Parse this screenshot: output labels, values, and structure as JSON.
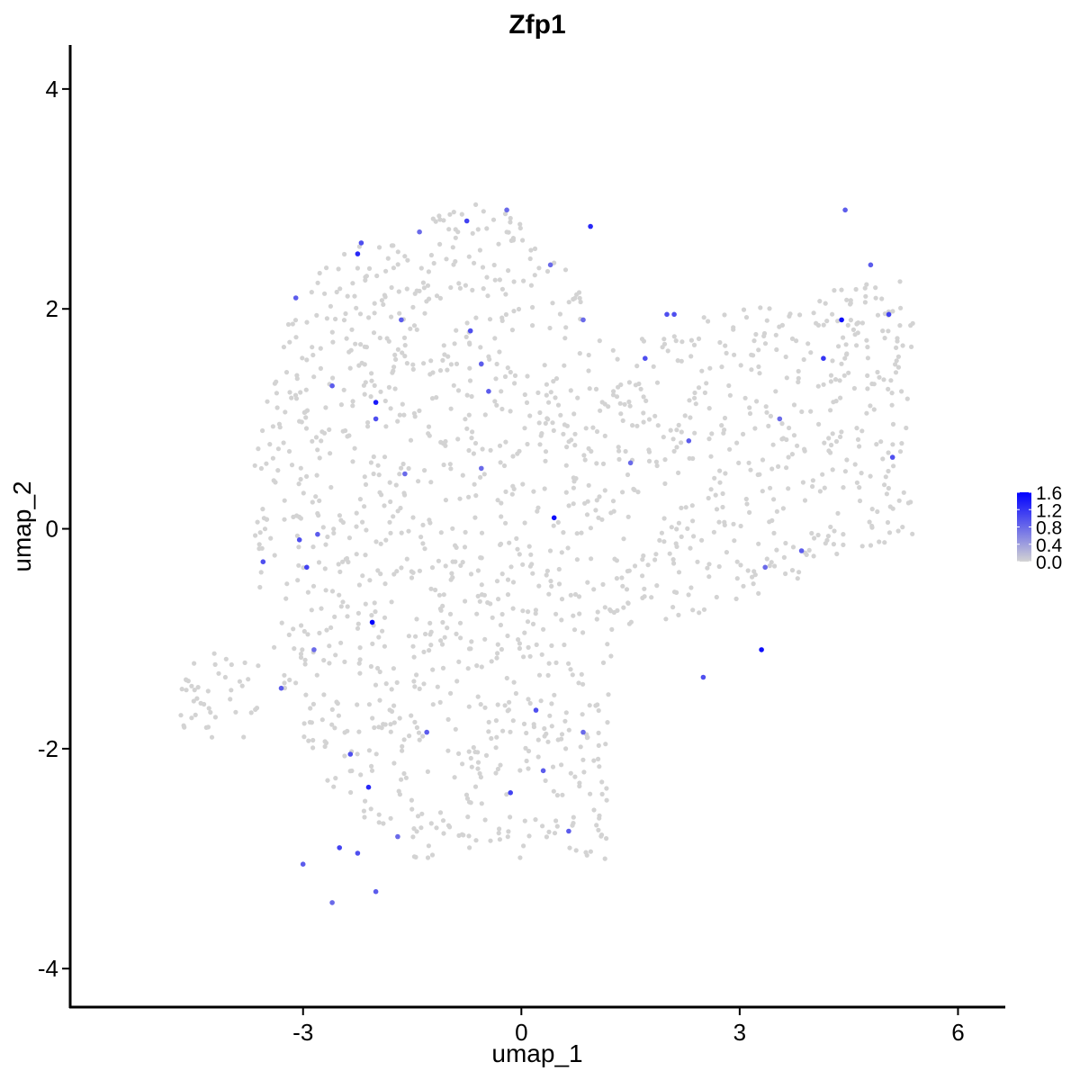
{
  "chart_data": {
    "type": "scatter",
    "title": "Zfp1",
    "xlabel": "umap_1",
    "ylabel": "umap_2",
    "xlim": [
      -6.2,
      6.65
    ],
    "ylim": [
      -4.35,
      4.4
    ],
    "x_ticks": [
      -3,
      0,
      3,
      6
    ],
    "y_ticks": [
      -4,
      -2,
      0,
      2,
      4
    ],
    "x_tick_labels": [
      "-3",
      "0",
      "3",
      "6"
    ],
    "y_tick_labels": [
      "-4",
      "-2",
      "0",
      "2",
      "4"
    ],
    "grid": false,
    "legend": {
      "placement": "right",
      "type": "colorbar",
      "min": 0.0,
      "max": 1.6,
      "tick_values": [
        0.0,
        0.4,
        0.8,
        1.2,
        1.6
      ],
      "tick_labels": [
        "0.0",
        "0.4",
        "0.8",
        "1.2",
        "1.6"
      ],
      "low_color": "#d3d3d3",
      "high_color": "#0000ff"
    },
    "cell_count": 1600,
    "expressing_points": [
      {
        "x": -3.1,
        "y": 2.1,
        "v": 0.9
      },
      {
        "x": -2.2,
        "y": 2.6,
        "v": 1.0
      },
      {
        "x": -2.25,
        "y": 2.5,
        "v": 1.3
      },
      {
        "x": -1.4,
        "y": 2.7,
        "v": 0.8
      },
      {
        "x": -0.75,
        "y": 2.8,
        "v": 1.1
      },
      {
        "x": 0.95,
        "y": 2.75,
        "v": 1.3
      },
      {
        "x": -1.65,
        "y": 1.9,
        "v": 0.9
      },
      {
        "x": -0.7,
        "y": 1.8,
        "v": 1.0
      },
      {
        "x": -0.55,
        "y": 1.5,
        "v": 0.9
      },
      {
        "x": -0.45,
        "y": 1.25,
        "v": 0.9
      },
      {
        "x": -2.0,
        "y": 1.15,
        "v": 1.4
      },
      {
        "x": -2.0,
        "y": 1.0,
        "v": 1.0
      },
      {
        "x": 0.85,
        "y": 1.9,
        "v": 0.8
      },
      {
        "x": 1.7,
        "y": 1.55,
        "v": 1.0
      },
      {
        "x": 2.0,
        "y": 1.95,
        "v": 1.0
      },
      {
        "x": 2.1,
        "y": 1.95,
        "v": 1.0
      },
      {
        "x": 4.4,
        "y": 1.9,
        "v": 1.5
      },
      {
        "x": 4.15,
        "y": 1.55,
        "v": 1.2
      },
      {
        "x": 5.05,
        "y": 1.95,
        "v": 1.1
      },
      {
        "x": 4.45,
        "y": 2.9,
        "v": 0.9
      },
      {
        "x": 4.8,
        "y": 2.4,
        "v": 0.9
      },
      {
        "x": 5.1,
        "y": 0.65,
        "v": 1.0
      },
      {
        "x": 0.45,
        "y": 0.1,
        "v": 1.5
      },
      {
        "x": -0.55,
        "y": 0.55,
        "v": 0.8
      },
      {
        "x": -3.05,
        "y": -0.1,
        "v": 1.0
      },
      {
        "x": -2.95,
        "y": -0.35,
        "v": 1.1
      },
      {
        "x": -2.05,
        "y": -0.85,
        "v": 1.6
      },
      {
        "x": -3.3,
        "y": -1.45,
        "v": 0.9
      },
      {
        "x": -2.85,
        "y": -1.1,
        "v": 0.8
      },
      {
        "x": -2.35,
        "y": -2.05,
        "v": 1.0
      },
      {
        "x": -2.1,
        "y": -2.35,
        "v": 1.3
      },
      {
        "x": -2.25,
        "y": -2.95,
        "v": 1.0
      },
      {
        "x": -2.0,
        "y": -3.3,
        "v": 0.9
      },
      {
        "x": -2.6,
        "y": -3.4,
        "v": 0.8
      },
      {
        "x": -3.0,
        "y": -3.05,
        "v": 0.9
      },
      {
        "x": -0.15,
        "y": -2.4,
        "v": 1.1
      },
      {
        "x": 0.65,
        "y": -2.75,
        "v": 0.9
      },
      {
        "x": 0.85,
        "y": -1.85,
        "v": 0.8
      },
      {
        "x": 3.3,
        "y": -1.1,
        "v": 1.5
      },
      {
        "x": 2.5,
        "y": -1.35,
        "v": 1.0
      },
      {
        "x": 3.35,
        "y": -0.35,
        "v": 0.8
      },
      {
        "x": 3.85,
        "y": -0.2,
        "v": 0.9
      },
      {
        "x": -1.3,
        "y": -1.85,
        "v": 0.9
      },
      {
        "x": -1.7,
        "y": -2.8,
        "v": 0.8
      },
      {
        "x": 0.2,
        "y": -1.65,
        "v": 1.0
      },
      {
        "x": -3.55,
        "y": -0.3,
        "v": 1.0
      },
      {
        "x": 0.3,
        "y": -2.2,
        "v": 0.9
      },
      {
        "x": -2.5,
        "y": -2.9,
        "v": 1.1
      },
      {
        "x": -2.8,
        "y": -0.05,
        "v": 0.9
      },
      {
        "x": 1.5,
        "y": 0.6,
        "v": 0.8
      },
      {
        "x": 2.3,
        "y": 0.8,
        "v": 0.9
      },
      {
        "x": 3.55,
        "y": 1.0,
        "v": 0.8
      },
      {
        "x": -0.2,
        "y": 2.9,
        "v": 0.8
      },
      {
        "x": 0.4,
        "y": 2.4,
        "v": 0.8
      },
      {
        "x": -2.6,
        "y": 1.3,
        "v": 0.9
      },
      {
        "x": -1.6,
        "y": 0.5,
        "v": 0.8
      }
    ]
  }
}
